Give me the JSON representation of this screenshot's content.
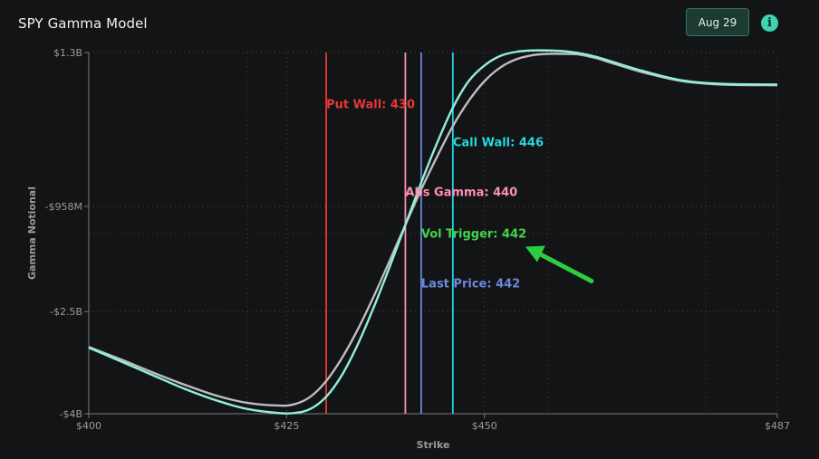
{
  "header": {
    "title": "SPY Gamma Model",
    "date_label": "Aug 29"
  },
  "icons": {
    "info": "info-icon"
  },
  "chart_data": {
    "type": "line",
    "xlabel": "Strike",
    "ylabel": "Gamma Notional",
    "xlim": [
      400,
      487
    ],
    "ylim": [
      -4000000000,
      1300000000
    ],
    "x_ticks": [
      {
        "value": 400,
        "label": "$400"
      },
      {
        "value": 425,
        "label": "$425"
      },
      {
        "value": 450,
        "label": "$450"
      },
      {
        "value": 487,
        "label": "$487"
      }
    ],
    "y_ticks": [
      {
        "value": 1300000000,
        "label": "$1.3B"
      },
      {
        "value": -958000000,
        "label": "-$958M"
      },
      {
        "value": -2500000000,
        "label": "-$2.5B"
      },
      {
        "value": -4000000000,
        "label": "-$4B"
      }
    ],
    "grid": true,
    "series": [
      {
        "color": "#8ff0d8",
        "x": [
          400,
          404,
          408,
          412,
          416,
          420,
          424,
          426,
          428,
          430,
          432,
          434,
          436,
          438,
          440,
          442,
          444,
          446,
          448,
          450,
          452,
          454,
          456,
          458,
          460,
          462,
          464,
          466,
          470,
          475,
          480,
          487
        ],
        "y": [
          -3030000000,
          -3230000000,
          -3430000000,
          -3630000000,
          -3800000000,
          -3930000000,
          -3990000000,
          -3990000000,
          -3930000000,
          -3750000000,
          -3430000000,
          -2980000000,
          -2440000000,
          -1850000000,
          -1230000000,
          -610000000,
          -30000000,
          490000000,
          880000000,
          1110000000,
          1250000000,
          1310000000,
          1330000000,
          1330000000,
          1320000000,
          1290000000,
          1240000000,
          1170000000,
          1030000000,
          890000000,
          840000000,
          830000000
        ]
      },
      {
        "color": "#bdbdbd",
        "x": [
          400,
          404,
          408,
          412,
          416,
          420,
          424,
          426,
          428,
          430,
          432,
          434,
          436,
          438,
          440,
          442,
          444,
          446,
          448,
          450,
          452,
          454,
          456,
          458,
          460,
          462,
          464,
          466,
          470,
          475,
          480,
          487
        ],
        "y": [
          -3020000000,
          -3200000000,
          -3390000000,
          -3570000000,
          -3730000000,
          -3840000000,
          -3880000000,
          -3860000000,
          -3750000000,
          -3520000000,
          -3180000000,
          -2760000000,
          -2280000000,
          -1760000000,
          -1230000000,
          -710000000,
          -230000000,
          220000000,
          590000000,
          880000000,
          1080000000,
          1200000000,
          1260000000,
          1280000000,
          1280000000,
          1270000000,
          1220000000,
          1150000000,
          1010000000,
          880000000,
          830000000,
          820000000
        ]
      }
    ],
    "vlines": [
      {
        "x": 430,
        "color": "#e53935",
        "label": "Put Wall: 430",
        "label_y": 550000000
      },
      {
        "x": 440,
        "color": "#ff8fb3",
        "label": "Abs Gamma: 440",
        "label_y": -740000000
      },
      {
        "x": 442,
        "color": "#6e86dd",
        "label": "Last Price: 442",
        "label_y": -2080000000
      },
      {
        "x": 446,
        "color": "#26d6dc",
        "label": "Call Wall: 446",
        "label_y": -10000000
      }
    ],
    "annotations": [
      {
        "text": "Vol Trigger: 442",
        "x": 442,
        "y": -1350000000,
        "color": "#3fd44b"
      }
    ]
  }
}
